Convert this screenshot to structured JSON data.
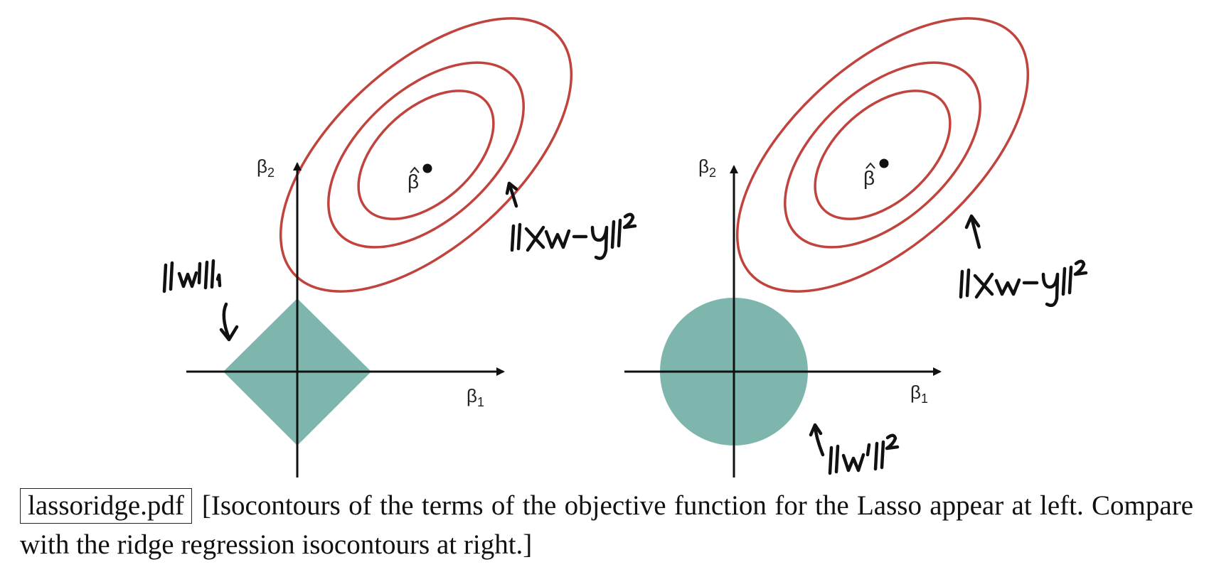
{
  "diagram": {
    "colors": {
      "contour": "#c0433d",
      "constraint_region": "#7eb6ae",
      "axis": "#111111"
    },
    "panels": [
      {
        "id": "lasso",
        "constraint_shape": "diamond",
        "x_axis": {
          "symbol": "β",
          "sub": "1"
        },
        "y_axis": {
          "symbol": "β",
          "sub": "2"
        },
        "optimum_label": "β",
        "annotations": [
          "||w||₁",
          "||Xw−y||²"
        ]
      },
      {
        "id": "ridge",
        "constraint_shape": "disk",
        "x_axis": {
          "symbol": "β",
          "sub": "1"
        },
        "y_axis": {
          "symbol": "β",
          "sub": "2"
        },
        "optimum_label": "β",
        "annotations": [
          "||Xw−y||²",
          "||w'||²"
        ]
      }
    ]
  },
  "caption": {
    "file_label": "lassoridge.pdf",
    "text": "[Isocontours of the terms of the objective function for the Lasso appear at left. Compare with the ridge regression isocontours at right.]"
  }
}
